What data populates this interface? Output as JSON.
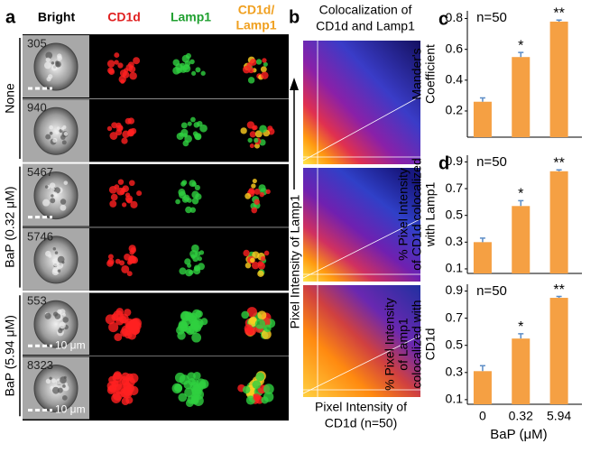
{
  "panel_a": {
    "label": "a",
    "columns": [
      {
        "text": "Bright",
        "color": "#000000"
      },
      {
        "text": "CD1d",
        "color": "#e02020"
      },
      {
        "text": "Lamp1",
        "color": "#20a030"
      },
      {
        "text": "CD1d/ Lamp1",
        "color": "#f0a020"
      }
    ],
    "groups": [
      {
        "label": "None",
        "cells": [
          {
            "id": "305"
          },
          {
            "id": "940"
          }
        ]
      },
      {
        "label": "BaP (0.32 μM)",
        "cells": [
          {
            "id": "5467"
          },
          {
            "id": "5746"
          }
        ]
      },
      {
        "label": "BaP (5.94 μM)",
        "cells": [
          {
            "id": "553",
            "scale": "10 μm"
          },
          {
            "id": "8323",
            "scale": "10 μm"
          }
        ]
      }
    ]
  },
  "panel_b": {
    "label": "b",
    "title": "Colocalization of CD1d and Lamp1",
    "ylabel": "Pixel Intensity of Lamp1",
    "xlabel": "Pixel Intensity of CD1d (n=50)"
  },
  "panel_labels": [
    "c",
    "d"
  ],
  "chart_data": [
    {
      "type": "bar",
      "ylabel": "Mander's Coefficient",
      "note": "n=50",
      "color": "#f5a043",
      "error_color": "#5b8cc6",
      "values": [
        0.26,
        0.55,
        0.78
      ],
      "errors": [
        0.025,
        0.03,
        0.01
      ],
      "annotations": [
        {
          "bar": 1,
          "text": "*"
        },
        {
          "bar": 2,
          "text": "**"
        }
      ],
      "ylim": [
        0.03,
        0.85
      ],
      "yticks": [
        0.2,
        0.4,
        0.6,
        0.8
      ]
    },
    {
      "type": "bar",
      "ylabel": "% Pixel Intensity of CD1d colocalized with Lamp1",
      "note": "n=50",
      "color": "#f5a043",
      "error_color": "#5b8cc6",
      "values": [
        0.3,
        0.57,
        0.83
      ],
      "errors": [
        0.03,
        0.04,
        0.01
      ],
      "annotations": [
        {
          "bar": 1,
          "text": "*"
        },
        {
          "bar": 2,
          "text": "**"
        }
      ],
      "ylim": [
        0.066,
        0.95
      ],
      "yticks": [
        0.1,
        0.3,
        0.5,
        0.7,
        0.9
      ]
    },
    {
      "type": "bar",
      "ylabel": "% Pixel Intensity of Lamp1 colocalized with CD1d",
      "note": "n=50",
      "color": "#f5a043",
      "error_color": "#5b8cc6",
      "categories": [
        "0",
        "0.32",
        "5.94"
      ],
      "xlabel": "BaP (μM)",
      "values": [
        0.31,
        0.55,
        0.85
      ],
      "errors": [
        0.04,
        0.035,
        0.01
      ],
      "annotations": [
        {
          "bar": 1,
          "text": "*"
        },
        {
          "bar": 2,
          "text": "**"
        }
      ],
      "ylim": [
        0.066,
        0.95
      ],
      "yticks": [
        0.1,
        0.3,
        0.5,
        0.7,
        0.9
      ]
    }
  ]
}
